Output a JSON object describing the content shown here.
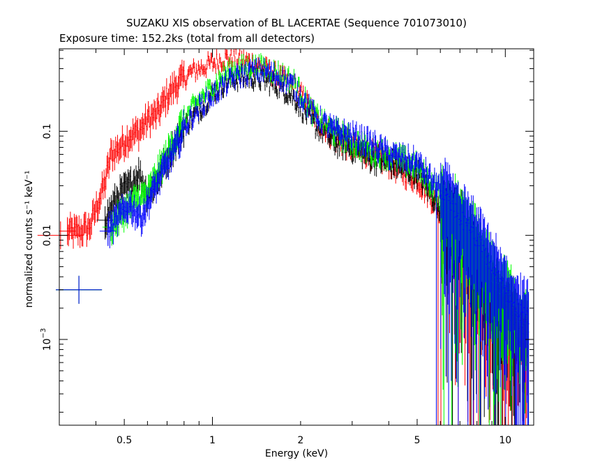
{
  "chart_data": {
    "type": "scatter",
    "title": "SUZAKU XIS observation of BL LACERTAE (Sequence 701073010)",
    "subtitle": "Exposure time: 152.2ks (total from all detectors)",
    "xlabel": "Energy (keV)",
    "ylabel": "normalized counts s⁻¹ keV⁻¹",
    "xscale": "log",
    "yscale": "log",
    "xlim": [
      0.3,
      12.5
    ],
    "ylim": [
      0.00015,
      0.62
    ],
    "x_ticks": [
      {
        "value": 0.5,
        "label": "0.5"
      },
      {
        "value": 1,
        "label": "1"
      },
      {
        "value": 2,
        "label": "2"
      },
      {
        "value": 5,
        "label": "5"
      },
      {
        "value": 10,
        "label": "10"
      }
    ],
    "y_ticks": [
      {
        "value": 0.1,
        "label": "0.1"
      },
      {
        "value": 0.01,
        "label": "0.01"
      },
      {
        "value": 0.001,
        "label": "10",
        "exponent": "−3"
      }
    ],
    "grid": false,
    "legend": "none",
    "colors": {
      "red": "#ff0000",
      "black": "#000000",
      "green": "#00ff00",
      "blue": "#0000ff"
    },
    "series": [
      {
        "color": "#ff0000",
        "x": [
          0.3,
          0.32,
          0.35,
          0.38,
          0.41,
          0.43,
          0.45,
          0.48,
          0.52,
          0.56,
          0.6,
          0.65,
          0.7,
          0.75,
          0.8,
          0.85,
          0.9,
          1.0,
          1.1,
          1.2,
          1.35,
          1.5,
          1.7,
          1.9,
          2.1,
          2.3,
          2.6,
          3.0,
          3.5,
          4.0,
          4.5,
          5.0,
          5.5,
          5.8,
          6.0,
          6.3,
          6.6,
          7.0,
          7.5,
          8.0,
          8.5,
          9.0,
          10.0,
          11.0,
          12.0
        ],
        "y": [
          0.01,
          0.011,
          0.011,
          0.012,
          0.022,
          0.033,
          0.06,
          0.07,
          0.09,
          0.1,
          0.13,
          0.15,
          0.22,
          0.28,
          0.33,
          0.37,
          0.4,
          0.45,
          0.5,
          0.5,
          0.46,
          0.4,
          0.33,
          0.27,
          0.19,
          0.12,
          0.09,
          0.07,
          0.06,
          0.05,
          0.04,
          0.035,
          0.025,
          0.02,
          0.016,
          0.014,
          0.012,
          0.008,
          0.006,
          0.004,
          0.003,
          0.002,
          0.0015,
          0.001,
          0.001
        ]
      },
      {
        "color": "#000000",
        "x": [
          0.35,
          0.43,
          0.45,
          0.48,
          0.52,
          0.56,
          0.6,
          0.65,
          0.7,
          0.75,
          0.8,
          0.9,
          1.0,
          1.1,
          1.2,
          1.35,
          1.5,
          1.7,
          1.9,
          2.2,
          2.6,
          3.0,
          3.5,
          4.0,
          5.0,
          5.8,
          6.3,
          7.0,
          8.0,
          9.0,
          10.0,
          11.0,
          12.0
        ],
        "y": [
          0.003,
          0.014,
          0.018,
          0.025,
          0.03,
          0.04,
          0.025,
          0.035,
          0.055,
          0.08,
          0.11,
          0.16,
          0.23,
          0.29,
          0.32,
          0.33,
          0.31,
          0.27,
          0.21,
          0.12,
          0.08,
          0.07,
          0.055,
          0.05,
          0.04,
          0.022,
          0.016,
          0.012,
          0.006,
          0.003,
          0.0022,
          0.0015,
          0.0012
        ]
      },
      {
        "color": "#00ff00",
        "x": [
          0.35,
          0.45,
          0.5,
          0.55,
          0.6,
          0.65,
          0.7,
          0.75,
          0.8,
          0.9,
          1.0,
          1.1,
          1.2,
          1.35,
          1.5,
          1.7,
          1.9,
          2.2,
          2.6,
          3.0,
          3.5,
          4.0,
          5.0,
          5.8,
          6.3,
          7.0,
          8.0,
          9.0,
          10.0,
          11.0,
          12.0
        ],
        "y": [
          0.003,
          0.012,
          0.017,
          0.022,
          0.025,
          0.04,
          0.06,
          0.09,
          0.13,
          0.2,
          0.27,
          0.36,
          0.4,
          0.42,
          0.41,
          0.36,
          0.3,
          0.15,
          0.1,
          0.08,
          0.065,
          0.06,
          0.045,
          0.028,
          0.02,
          0.014,
          0.008,
          0.004,
          0.0028,
          0.0018,
          0.0014
        ]
      },
      {
        "color": "#0000ff",
        "x": [
          0.35,
          0.44,
          0.47,
          0.52,
          0.57,
          0.62,
          0.7,
          0.75,
          0.8,
          0.9,
          1.0,
          1.1,
          1.2,
          1.35,
          1.5,
          1.7,
          1.9,
          2.2,
          2.6,
          3.0,
          3.5,
          4.0,
          5.0,
          5.8,
          6.3,
          7.0,
          8.0,
          9.0,
          10.0,
          11.0,
          12.0
        ],
        "y": [
          0.003,
          0.011,
          0.014,
          0.02,
          0.015,
          0.025,
          0.05,
          0.07,
          0.11,
          0.17,
          0.22,
          0.28,
          0.33,
          0.37,
          0.38,
          0.33,
          0.27,
          0.15,
          0.1,
          0.09,
          0.075,
          0.06,
          0.05,
          0.03,
          0.022,
          0.015,
          0.009,
          0.005,
          0.003,
          0.002,
          0.0015
        ]
      }
    ]
  }
}
